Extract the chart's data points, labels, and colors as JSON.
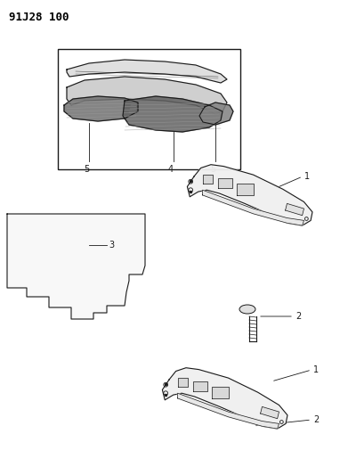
{
  "title": "91J28 100",
  "bg_color": "#ffffff",
  "line_color": "#1a1a1a",
  "label_color": "#000000",
  "title_fontsize": 9,
  "label_fontsize": 7,
  "fig_width": 3.91,
  "fig_height": 5.33,
  "dpi": 100
}
